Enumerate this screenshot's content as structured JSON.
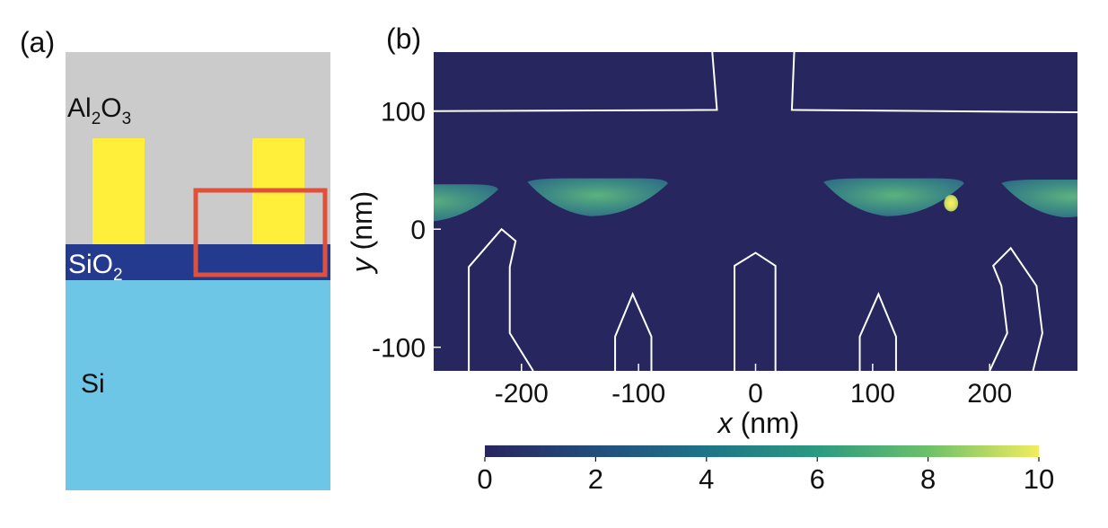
{
  "panel_a": {
    "label": "(a)",
    "layers": {
      "al2o3": {
        "main": "Al",
        "sub1": "2",
        "mid": "O",
        "sub2": "3",
        "color": "#cbcbcb"
      },
      "sio2": {
        "main": "SiO",
        "sub": "2",
        "color": "#243a8e"
      },
      "si": {
        "main": "Si",
        "color": "#6ec6e6"
      }
    },
    "electrode_color": "#ffee3a",
    "highlight_color": "#e0503a"
  },
  "panel_b": {
    "label": "(b)"
  },
  "chart_data": {
    "type": "heatmap",
    "xlabel_var": "x",
    "xlabel_unit": " (nm)",
    "ylabel_var": "y",
    "ylabel_unit": " (nm)",
    "xlim": [
      -275,
      275
    ],
    "ylim": [
      -120,
      150
    ],
    "x_ticks": [
      -200,
      -100,
      0,
      100,
      200
    ],
    "x_tick_labels": [
      "-200",
      "-100",
      "0",
      "100",
      "200"
    ],
    "y_ticks": [
      100,
      0,
      -100
    ],
    "y_tick_labels": [
      "100",
      "0",
      "-100"
    ],
    "colorbar": {
      "min": 0,
      "max": 10,
      "ticks": [
        0,
        2,
        4,
        6,
        8,
        10
      ],
      "tick_labels": [
        "0",
        "2",
        "4",
        "6",
        "8",
        "10"
      ],
      "colormap": "viridis"
    },
    "background_value": 0,
    "hotspots": [
      {
        "center_x": -280,
        "center_y": 28,
        "peak_value": 5.5
      },
      {
        "center_x": -135,
        "center_y": 33,
        "peak_value": 5.2
      },
      {
        "center_x": 118,
        "center_y": 33,
        "peak_value": 5.6
      },
      {
        "center_x": 167,
        "center_y": 22,
        "peak_value": 10
      },
      {
        "center_x": 270,
        "center_y": 32,
        "peak_value": 4.5
      }
    ],
    "gate_top": {
      "left": [
        [
          -275,
          100
        ],
        [
          -33,
          101
        ],
        [
          -37,
          150
        ]
      ],
      "right": [
        [
          33,
          150
        ],
        [
          31,
          101
        ],
        [
          275,
          99
        ]
      ]
    },
    "electrode_outlines": [
      [
        [
          -245,
          -120
        ],
        [
          -245,
          -88
        ],
        [
          -245,
          -32
        ],
        [
          -217,
          0
        ],
        [
          -205,
          -10
        ],
        [
          -210,
          -32
        ],
        [
          -210,
          -88
        ],
        [
          -190,
          -120
        ]
      ],
      [
        [
          -120,
          -120
        ],
        [
          -120,
          -91
        ],
        [
          -105,
          -55
        ],
        [
          -89,
          -91
        ],
        [
          -89,
          -120
        ]
      ],
      [
        [
          -18,
          -120
        ],
        [
          -18,
          -31
        ],
        [
          0,
          -20
        ],
        [
          17,
          -31
        ],
        [
          17,
          -120
        ]
      ],
      [
        [
          89,
          -120
        ],
        [
          89,
          -91
        ],
        [
          105,
          -55
        ],
        [
          120,
          -91
        ],
        [
          120,
          -120
        ]
      ],
      [
        [
          200,
          -120
        ],
        [
          215,
          -88
        ],
        [
          210,
          -48
        ],
        [
          203,
          -31
        ],
        [
          218,
          -16
        ],
        [
          240,
          -48
        ],
        [
          245,
          -88
        ],
        [
          237,
          -120
        ]
      ]
    ]
  }
}
